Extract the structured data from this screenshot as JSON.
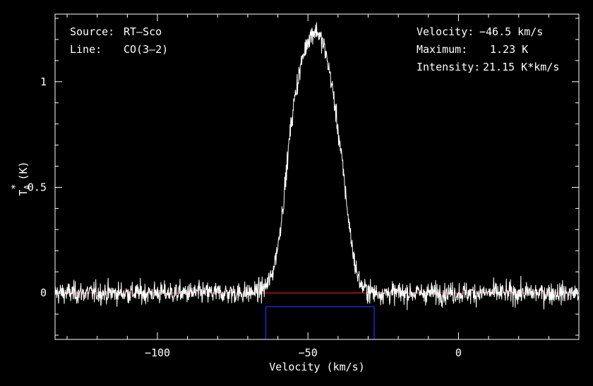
{
  "chart_data": {
    "type": "line",
    "title": "",
    "xlabel": "Velocity (km/s)",
    "ylabel": "T*A (K)",
    "ylabel_main": "T",
    "ylabel_sup": "*",
    "ylabel_sub": "A",
    "ylabel_unit": "(K)",
    "xlim": [
      -134,
      40
    ],
    "ylim": [
      -0.22,
      1.32
    ],
    "xticks": [
      -100,
      -50,
      0
    ],
    "xtick_labels": [
      "−100",
      "−50",
      "0"
    ],
    "yticks": [
      0,
      0.5,
      1
    ],
    "ytick_labels": [
      "0",
      "0.5",
      "1"
    ],
    "grid": false,
    "annotations_left": [
      {
        "key": "Source:",
        "value": "RT–Sco"
      },
      {
        "key": "Line:",
        "value": "CO(3–2)"
      }
    ],
    "annotations_right": [
      {
        "key": "Velocity:",
        "value": "−46.5 km/s"
      },
      {
        "key": "Maximum:",
        "value": "1.23 K"
      },
      {
        "key": "Intensity:",
        "value": "21.15 K*km/s"
      }
    ],
    "series": [
      {
        "line_color": "#ffffff",
        "x": [
          -134,
          -130,
          -126,
          -122,
          -118,
          -114,
          -110,
          -106,
          -102,
          -98,
          -94,
          -90,
          -86,
          -82,
          -78,
          -74,
          -70,
          -66,
          -64,
          -62,
          -60,
          -58,
          -56,
          -55,
          -54,
          -53,
          -52,
          -51,
          -50,
          -49,
          -48,
          -47,
          -46.5,
          -46,
          -45,
          -44,
          -43,
          -42,
          -41,
          -40,
          -39,
          -38,
          -37,
          -36,
          -35,
          -34,
          -33,
          -32,
          -30,
          -28,
          -26,
          -24,
          -20,
          -16,
          -12,
          -8,
          -4,
          0,
          4,
          8,
          12,
          16,
          20,
          24,
          28,
          32,
          36,
          40
        ],
        "y": [
          0,
          0,
          0,
          0,
          0,
          0,
          0,
          0,
          0,
          0,
          0,
          0,
          0,
          0,
          0,
          0,
          0,
          0.01,
          0.03,
          0.08,
          0.22,
          0.45,
          0.75,
          0.86,
          0.96,
          1.03,
          1.1,
          1.15,
          1.2,
          1.22,
          1.24,
          1.24,
          1.23,
          1.21,
          1.18,
          1.13,
          1.06,
          0.98,
          0.88,
          0.77,
          0.66,
          0.54,
          0.41,
          0.29,
          0.19,
          0.11,
          0.06,
          0.03,
          0.01,
          0,
          0,
          0,
          0,
          0,
          0,
          0,
          0,
          0,
          0,
          0,
          0,
          0,
          0,
          0,
          0,
          0,
          0,
          0
        ],
        "noise_rms_K": 0.04
      }
    ],
    "baseline": {
      "y": 0,
      "color": "#ff2a1a"
    },
    "window": {
      "x_min": -64,
      "x_max": -28,
      "y_top": -0.065,
      "color": "#1a2cff"
    }
  }
}
